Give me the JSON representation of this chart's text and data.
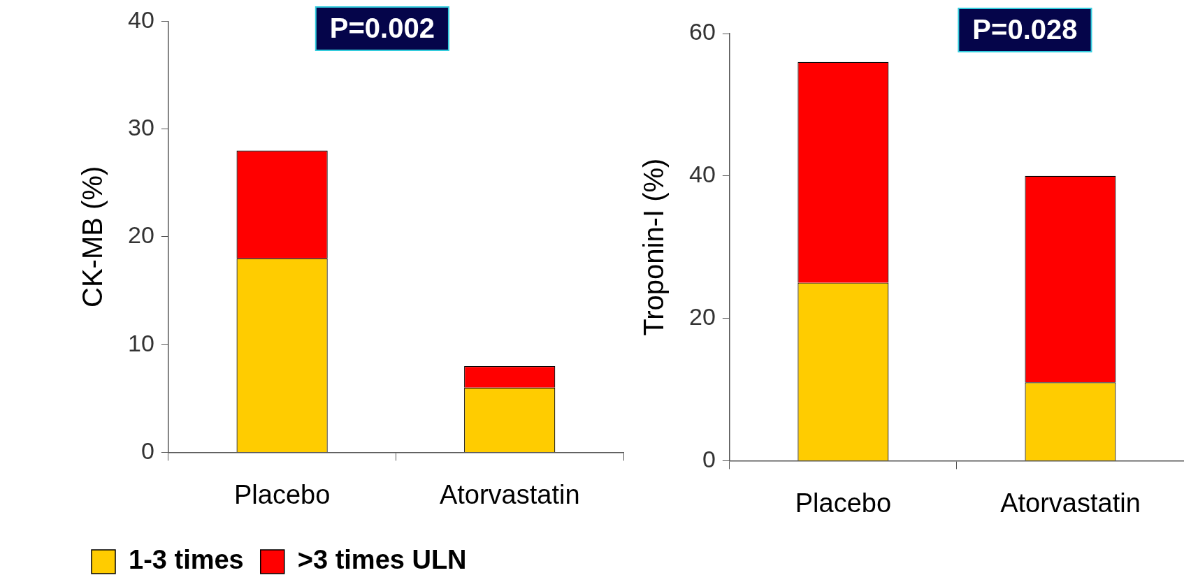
{
  "chart_data": [
    {
      "type": "bar",
      "ylabel": "CK-MB (%)",
      "categories": [
        "Placebo",
        "Atorvastatin"
      ],
      "stacked": true,
      "ylim": [
        0,
        40
      ],
      "yticks": [
        0,
        10,
        20,
        30,
        40
      ],
      "grid": false,
      "legend": "bottom left",
      "annotations": [
        "P=0.002"
      ],
      "series": [
        {
          "name": "1-3 times",
          "color": "#ffcc00",
          "values": [
            18,
            6
          ]
        },
        {
          "name": ">3 times ULN",
          "color": "#ff0000",
          "values": [
            10,
            2
          ]
        }
      ]
    },
    {
      "type": "bar",
      "ylabel": "Troponin-I (%)",
      "categories": [
        "Placebo",
        "Atorvastatin"
      ],
      "stacked": true,
      "ylim": [
        0,
        60
      ],
      "yticks": [
        0,
        20,
        40,
        60
      ],
      "grid": false,
      "legend": false,
      "annotations": [
        "P=0.028"
      ],
      "series": [
        {
          "color": "#ffcc00",
          "values": [
            25,
            11
          ]
        },
        {
          "color": "#ff0000",
          "values": [
            31,
            29
          ]
        }
      ]
    }
  ]
}
